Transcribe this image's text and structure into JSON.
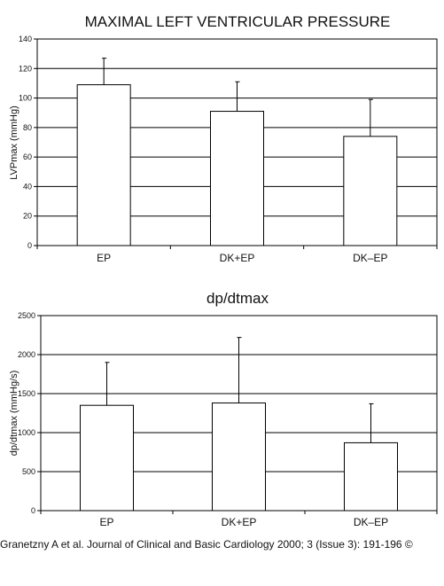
{
  "chart_data": [
    {
      "type": "bar",
      "title": "MAXIMAL LEFT VENTRICULAR PRESSURE",
      "xlabel": "",
      "ylabel": "LVPmax (mmHg)",
      "categories": [
        "EP",
        "DK+EP",
        "DK–EP"
      ],
      "values": [
        109,
        91,
        74
      ],
      "error": [
        18,
        20,
        25
      ],
      "ylim": [
        0,
        140
      ],
      "yticks": [
        0,
        20,
        40,
        60,
        80,
        100,
        120,
        140
      ],
      "grid": true,
      "colors": {
        "bar_fill": "#ffffff",
        "bar_stroke": "#000000"
      }
    },
    {
      "type": "bar",
      "title": "dp/dtmax",
      "xlabel": "",
      "ylabel": "dp/dtmax (mmHg/s)",
      "categories": [
        "EP",
        "DK+EP",
        "DK–EP"
      ],
      "values": [
        1350,
        1380,
        870
      ],
      "error": [
        550,
        840,
        500
      ],
      "ylim": [
        0,
        2500
      ],
      "yticks": [
        0,
        500,
        1000,
        1500,
        2000,
        2500
      ],
      "grid": true,
      "colors": {
        "bar_fill": "#ffffff",
        "bar_stroke": "#000000"
      }
    }
  ],
  "footer": {
    "citation": "Granetzny A et al. Journal of Clinical and Basic Cardiology 2000; 3 (Issue 3): 191-196 ©"
  }
}
